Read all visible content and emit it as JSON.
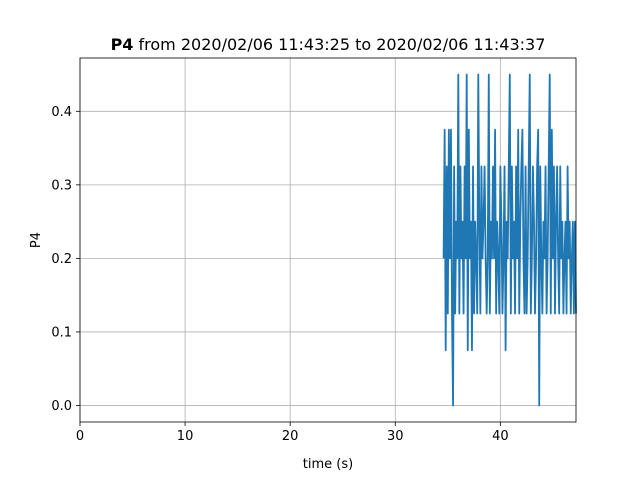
{
  "chart_data": {
    "type": "line",
    "title_bold": "P4",
    "title_rest": " from 2020/02/06 11:43:25 to 2020/02/06 11:43:37",
    "xlabel": "time (s)",
    "ylabel": "P4",
    "xlim": [
      0,
      47.2
    ],
    "ylim": [
      -0.0225,
      0.4725
    ],
    "xticks": [
      0,
      10,
      20,
      30,
      40
    ],
    "xtick_labels": [
      "0",
      "10",
      "20",
      "30",
      "40"
    ],
    "yticks": [
      0.0,
      0.1,
      0.2,
      0.3,
      0.4
    ],
    "ytick_labels": [
      "0.0",
      "0.1",
      "0.2",
      "0.3",
      "0.4"
    ],
    "grid": true,
    "line_color": "#1f77b4",
    "series": [
      {
        "x": [
          34.6,
          34.7,
          34.8,
          34.9,
          35.0,
          35.1,
          35.2,
          35.3,
          35.4,
          35.5,
          35.6,
          35.7,
          35.8,
          35.9,
          36.0,
          36.1,
          36.2,
          36.3,
          36.4,
          36.5,
          36.6,
          36.7,
          36.8,
          36.9,
          37.0,
          37.1,
          37.2,
          37.3,
          37.4,
          37.5,
          37.6,
          37.7,
          37.8,
          37.9,
          38.0,
          38.1,
          38.2,
          38.3,
          38.4,
          38.5,
          38.6,
          38.7,
          38.8,
          38.9,
          39.0,
          39.1,
          39.2,
          39.3,
          39.4,
          39.5,
          39.6,
          39.7,
          39.8,
          39.9,
          40.0,
          40.1,
          40.2,
          40.3,
          40.4,
          40.5,
          40.6,
          40.7,
          40.8,
          40.9,
          41.0,
          41.1,
          41.2,
          41.3,
          41.4,
          41.5,
          41.6,
          41.7,
          41.8,
          41.9,
          42.0,
          42.1,
          42.2,
          42.3,
          42.4,
          42.5,
          42.6,
          42.7,
          42.8,
          42.9,
          43.0,
          43.1,
          43.2,
          43.3,
          43.4,
          43.5,
          43.6,
          43.7,
          43.8,
          43.9,
          44.0,
          44.1,
          44.2,
          44.3,
          44.4,
          44.5,
          44.6,
          44.7,
          44.8,
          44.9,
          45.0,
          45.1,
          45.2,
          45.3,
          45.4,
          45.5,
          45.6,
          45.7,
          45.8,
          45.9,
          46.0,
          46.1,
          46.2,
          46.3,
          46.4,
          46.5,
          46.6,
          46.7,
          46.8,
          46.9,
          47.0,
          47.1,
          47.2
        ],
        "y": [
          0.2,
          0.375,
          0.075,
          0.325,
          0.125,
          0.375,
          0.2,
          0.375,
          0.125,
          0.0,
          0.325,
          0.125,
          0.25,
          0.2,
          0.45,
          0.125,
          0.325,
          0.2,
          0.25,
          0.125,
          0.325,
          0.2,
          0.45,
          0.075,
          0.375,
          0.2,
          0.25,
          0.075,
          0.325,
          0.125,
          0.25,
          0.2,
          0.125,
          0.45,
          0.25,
          0.125,
          0.325,
          0.2,
          0.25,
          0.325,
          0.2,
          0.125,
          0.2,
          0.45,
          0.125,
          0.25,
          0.2,
          0.325,
          0.2,
          0.375,
          0.125,
          0.25,
          0.2,
          0.125,
          0.325,
          0.25,
          0.125,
          0.2,
          0.325,
          0.075,
          0.25,
          0.2,
          0.325,
          0.45,
          0.125,
          0.325,
          0.2,
          0.25,
          0.125,
          0.325,
          0.2,
          0.375,
          0.125,
          0.25,
          0.325,
          0.375,
          0.2,
          0.125,
          0.325,
          0.125,
          0.2,
          0.325,
          0.45,
          0.125,
          0.2,
          0.325,
          0.25,
          0.125,
          0.2,
          0.325,
          0.375,
          0.0,
          0.325,
          0.2,
          0.125,
          0.25,
          0.2,
          0.325,
          0.125,
          0.2,
          0.325,
          0.45,
          0.125,
          0.375,
          0.2,
          0.325,
          0.125,
          0.25,
          0.325,
          0.2,
          0.125,
          0.325,
          0.2,
          0.25,
          0.125,
          0.2,
          0.25,
          0.125,
          0.325,
          0.2,
          0.25,
          0.125,
          0.2,
          0.25,
          0.125,
          0.25,
          0.125
        ]
      }
    ]
  }
}
